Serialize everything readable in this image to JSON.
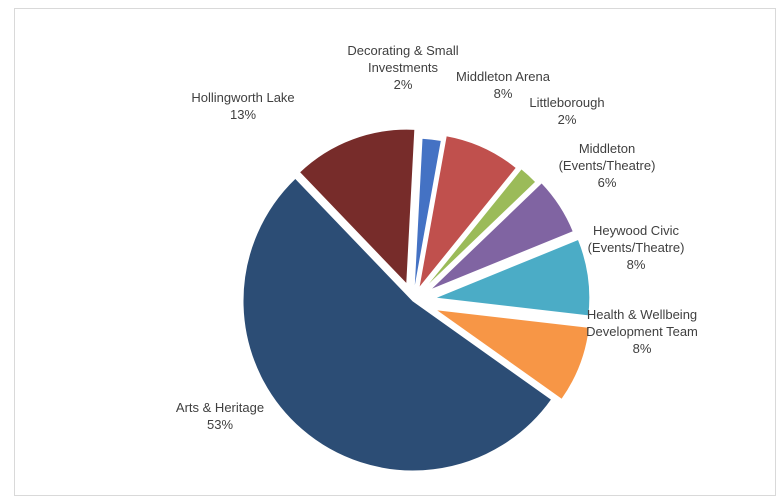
{
  "chart_data": {
    "type": "pie",
    "exploded": true,
    "start_angle_deg": 3,
    "slices": [
      {
        "name": "Decorating & Small Investments",
        "label_lines": [
          "Decorating & Small",
          "Investments",
          "2%"
        ],
        "value": 2,
        "pct_label": "2%",
        "color": "#4472c4"
      },
      {
        "name": "Middleton Arena",
        "label_lines": [
          "Middleton Arena",
          "8%"
        ],
        "value": 8,
        "pct_label": "8%",
        "color": "#c0504d"
      },
      {
        "name": "Littleborough",
        "label_lines": [
          "Littleborough",
          "2%"
        ],
        "value": 2,
        "pct_label": "2%",
        "color": "#9bbb59"
      },
      {
        "name": "Middleton (Events/Theatre)",
        "label_lines": [
          "Middleton",
          "(Events/Theatre)",
          "6%"
        ],
        "value": 6,
        "pct_label": "6%",
        "color": "#8064a2"
      },
      {
        "name": "Heywood Civic (Events/Theatre)",
        "label_lines": [
          "Heywood Civic",
          "(Events/Theatre)",
          "8%"
        ],
        "value": 8,
        "pct_label": "8%",
        "color": "#4bacc6"
      },
      {
        "name": "Health & Wellbeing Development Team",
        "label_lines": [
          "Health & Wellbeing",
          "Development Team",
          "8%"
        ],
        "value": 8,
        "pct_label": "8%",
        "color": "#f79646"
      },
      {
        "name": "Arts & Heritage",
        "label_lines": [
          "Arts & Heritage",
          "53%"
        ],
        "value": 53,
        "pct_label": "53%",
        "color": "#2c4d75"
      },
      {
        "name": "Hollingworth Lake",
        "label_lines": [
          "Hollingworth Lake",
          "13%"
        ],
        "value": 13,
        "pct_label": "13%",
        "color": "#772c2a"
      }
    ]
  }
}
